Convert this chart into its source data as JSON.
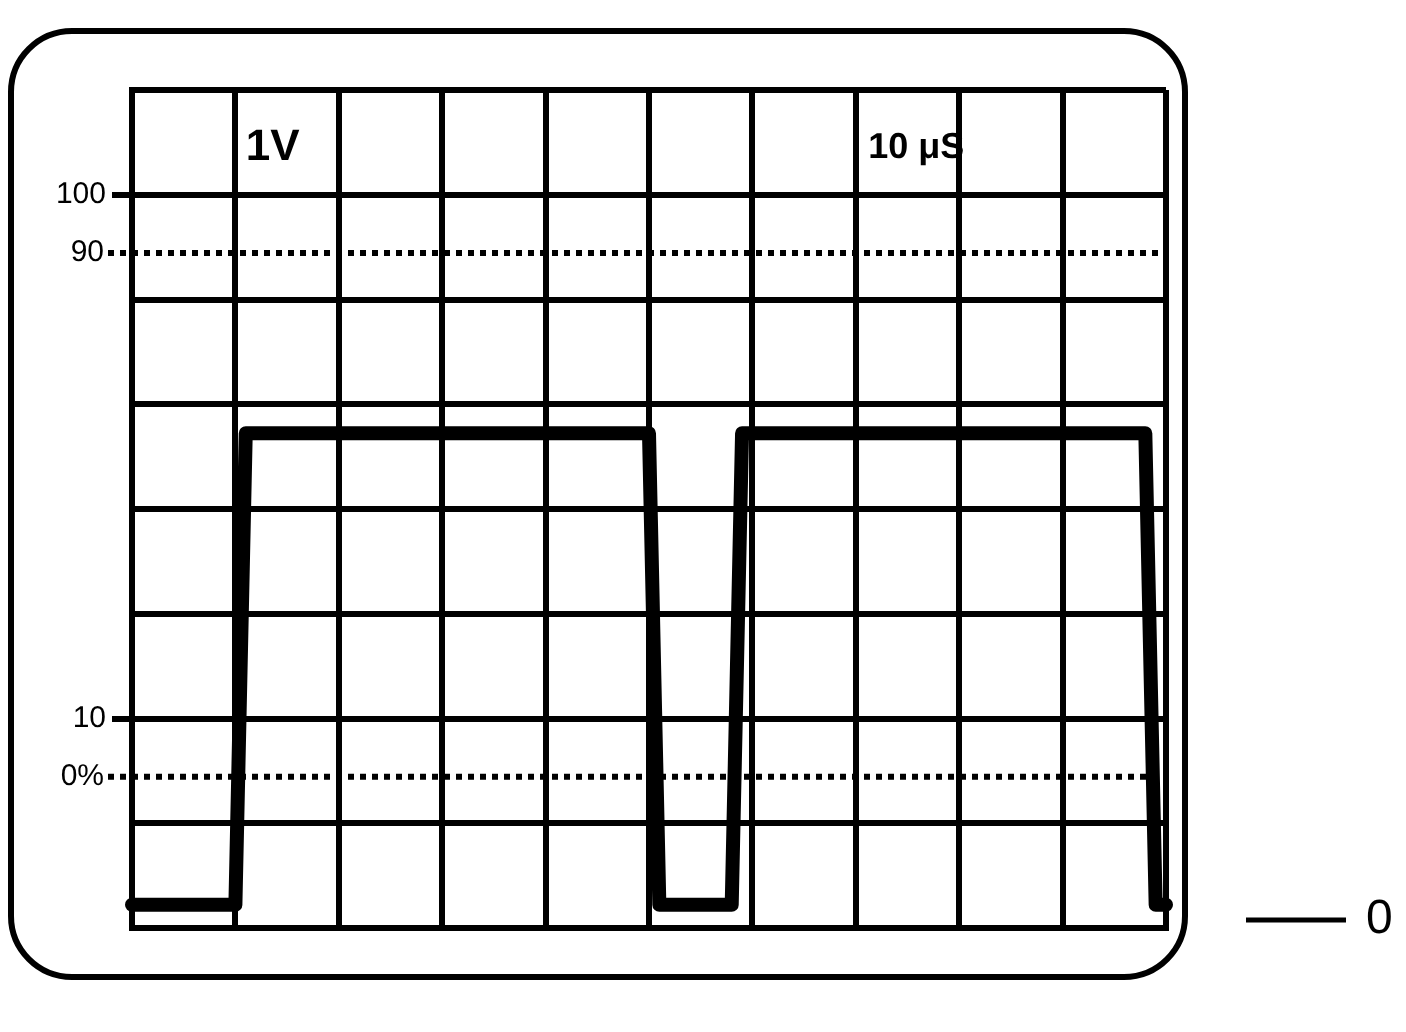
{
  "chart_data": {
    "type": "line",
    "categories": [
      null,
      null,
      null,
      null,
      null,
      null,
      null,
      null,
      null,
      null,
      null,
      null,
      null,
      null,
      null,
      null,
      null,
      null,
      null,
      null,
      null,
      null,
      null,
      null,
      null,
      null,
      null,
      null,
      null,
      null,
      null,
      null,
      null,
      null,
      null,
      null,
      null,
      null,
      null,
      null,
      null,
      null,
      null,
      null,
      null,
      null,
      null,
      null,
      null,
      null,
      null,
      null,
      null,
      null,
      null,
      null,
      null,
      null,
      null,
      null,
      null,
      null,
      null,
      null,
      null,
      null,
      null,
      null,
      null,
      null,
      null,
      null,
      null,
      null,
      null,
      null,
      null,
      null,
      null,
      null,
      null,
      null,
      null,
      null,
      null,
      null,
      null,
      null,
      null,
      null,
      null,
      null,
      null,
      null,
      null,
      null,
      null,
      null,
      null,
      null,
      null
    ],
    "values": [
      -22,
      -22,
      -22,
      -22,
      -22,
      -22,
      -22,
      -22,
      -22,
      -22,
      -22,
      59,
      59,
      59,
      59,
      59,
      59,
      59,
      59,
      59,
      59,
      59,
      59,
      59,
      59,
      59,
      59,
      59,
      59,
      59,
      59,
      59,
      59,
      59,
      59,
      59,
      59,
      59,
      59,
      59,
      59,
      59,
      59,
      59,
      59,
      59,
      59,
      59,
      59,
      59,
      59,
      -22,
      -22,
      -22,
      -22,
      -22,
      -22,
      -22,
      -22,
      59,
      59,
      59,
      59,
      59,
      59,
      59,
      59,
      59,
      59,
      59,
      59,
      59,
      59,
      59,
      59,
      59,
      59,
      59,
      59,
      59,
      59,
      59,
      59,
      59,
      59,
      59,
      59,
      59,
      59,
      59,
      59,
      59,
      59,
      59,
      59,
      59,
      59,
      59,
      59,
      -22,
      -22
    ],
    "color": "#000000",
    "marker": "none",
    "line_style": "solid",
    "ylim": [
      -26,
      118
    ],
    "yticks": [
      {
        "value": -26,
        "label": null
      },
      {
        "value": -8,
        "label": null
      },
      10,
      {
        "value": 28,
        "label": null
      },
      {
        "value": 46,
        "label": null
      },
      {
        "value": 64,
        "label": null
      },
      {
        "value": 82,
        "label": null
      },
      100,
      {
        "value": 118,
        "label": null
      }
    ],
    "grid": true,
    "tick_labels": "y",
    "ref_lines": [
      {
        "axis": "y",
        "value": 90,
        "label": "90",
        "color": "#000000",
        "line_style": "dotted"
      },
      {
        "axis": "y",
        "value": 0,
        "label": "0%",
        "color": "#000000",
        "line_style": "dotted"
      }
    ],
    "annotations": [
      "1V",
      "10 μS",
      "0"
    ]
  }
}
